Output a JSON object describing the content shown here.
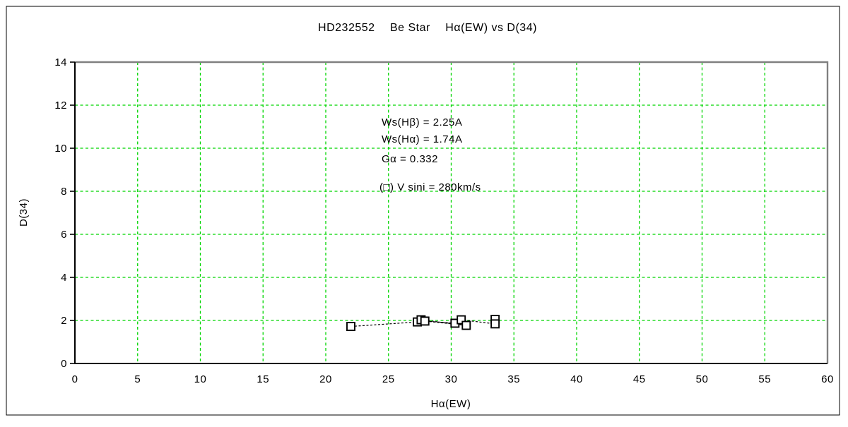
{
  "chart_data": {
    "type": "scatter",
    "title": "HD232552  Be Star  Hα(EW) vs D(34)",
    "xlabel": "Hα(EW)",
    "ylabel": "D(34)",
    "xlim": [
      0,
      60
    ],
    "ylim": [
      0,
      14
    ],
    "x_ticks": [
      0,
      5,
      10,
      15,
      20,
      25,
      30,
      35,
      40,
      45,
      50,
      55,
      60
    ],
    "y_ticks": [
      0,
      2,
      4,
      6,
      8,
      10,
      12,
      14
    ],
    "grid": "dashed green, vertical every 5, horizontal every 2",
    "legend_position": "inside upper-middle",
    "annotations": [
      "Ws(Hβ) = 2.25A",
      "Ws(Hα) = 1.74A",
      "Gα = 0.332"
    ],
    "legend": "(□) V sini = 280km/s",
    "series": [
      {
        "name": "V sini = 280km/s",
        "marker": "open-square",
        "line_style": "dashed",
        "points": [
          {
            "x": 22.0,
            "y": 1.72
          },
          {
            "x": 27.3,
            "y": 1.93
          },
          {
            "x": 27.6,
            "y": 2.03
          },
          {
            "x": 27.9,
            "y": 1.97
          },
          {
            "x": 30.3,
            "y": 1.87
          },
          {
            "x": 30.8,
            "y": 2.03
          },
          {
            "x": 31.2,
            "y": 1.77
          },
          {
            "x": 33.5,
            "y": 2.05
          },
          {
            "x": 33.5,
            "y": 1.84
          }
        ],
        "draw_order": [
          0,
          1,
          2,
          6,
          3,
          4,
          5,
          8,
          7
        ]
      }
    ],
    "colors": {
      "grid": "#00d500",
      "frame_gray": "#808080",
      "axis": "#000000",
      "marker": "#000000",
      "line": "#000000",
      "background": "#ffffff",
      "outer_border": "#000000"
    }
  }
}
